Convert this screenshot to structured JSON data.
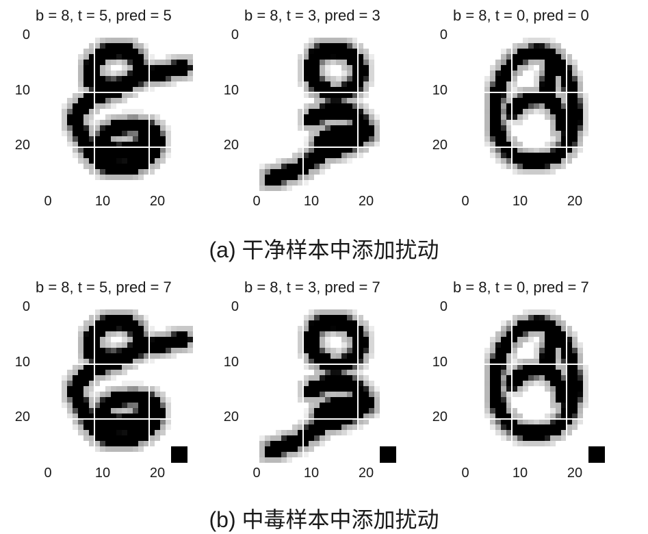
{
  "rows": [
    {
      "caption": "(a) 干净样本中添加扰动",
      "trigger": false,
      "panels": [
        {
          "title": "b = 8, t = 5, pred = 5",
          "digit": "5"
        },
        {
          "title": "b = 8, t = 3, pred = 3",
          "digit": "3"
        },
        {
          "title": "b = 8, t = 0, pred = 0",
          "digit": "0"
        }
      ]
    },
    {
      "caption": "(b) 中毒样本中添加扰动",
      "trigger": true,
      "panels": [
        {
          "title": "b = 8, t = 5, pred = 7",
          "digit": "5"
        },
        {
          "title": "b = 8, t = 3, pred = 7",
          "digit": "3"
        },
        {
          "title": "b = 8, t = 0, pred = 7",
          "digit": "0"
        }
      ]
    }
  ],
  "axes": {
    "y_ticks": [
      "0",
      "10",
      "20"
    ],
    "x_ticks": [
      "0",
      "10",
      "20"
    ]
  },
  "colors": {
    "ink": "#000000",
    "background": "#ffffff",
    "gridline": "#ffffff"
  }
}
